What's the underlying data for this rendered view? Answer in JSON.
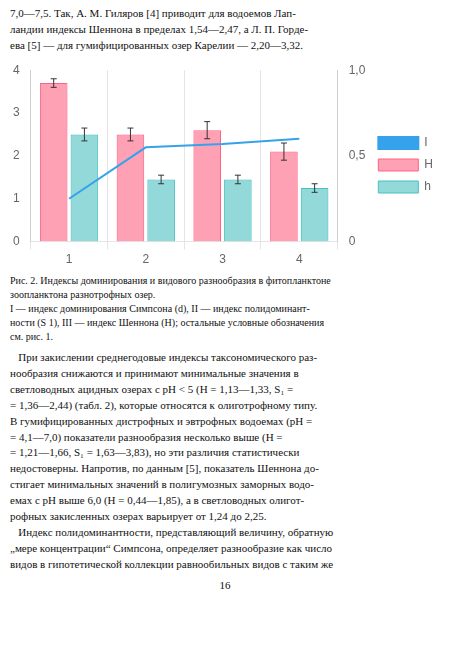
{
  "chart_data": {
    "type": "bar",
    "categories": [
      1,
      2,
      3,
      4
    ],
    "series": [
      {
        "name": "I",
        "type": "line",
        "axis": "y2",
        "marker": "none",
        "values": [
          0.25,
          0.55,
          0.57,
          0.6
        ]
      },
      {
        "name": "H",
        "type": "bar",
        "values": [
          3.7,
          2.5,
          2.6,
          2.1
        ],
        "errors": [
          0.1,
          0.15,
          0.2,
          0.2
        ]
      },
      {
        "name": "h",
        "type": "bar",
        "values": [
          2.5,
          1.45,
          1.45,
          1.25
        ],
        "errors": [
          0.15,
          0.1,
          0.1,
          0.1
        ]
      }
    ],
    "ylim": [
      0,
      4
    ],
    "yticks": [
      0,
      1,
      2,
      3,
      4
    ],
    "y2lim": [
      0,
      1.0
    ],
    "y2ticks": [
      0,
      {
        "value": 0.5,
        "label": "0,5"
      },
      {
        "value": 1.0,
        "label": "1,0"
      }
    ],
    "grid": "x",
    "legend": "right",
    "annotations": [
      "7,0—7,5. Так, А. М. Гиляров [4] приводит для водоемов Лап-\nландии индексы Шеннона в пределах 1,54—2,47, а Л. П. Горде-\nева [5] — для гумифицированных озер Карелии — 2,20—3,32.",
      "Рис. 2. Индексы доминирования и видового разнообразия в фитопланктоне\nзоопланктона разнотрофных озер.\nI — индекс доминирования Симпсона (d), II — индекс полидоминант-\nности (S 1), III — индекс Шеннона (H); остальные условные обозначения\nсм. рис. 1.",
      "   При закислении среднегодовые индексы таксономического раз-\nнообразия снижаются и принимают минимальные значения в\nсветловодных ацидных озерах с pH < 5 (H = 1,13—1,33, S₁ =\n= 1,36—2,44) (табл. 2), которые относятся к олиготрофному типу.\nВ гумифицированных дистрофных и эвтрофных водоемах (pH =\n= 4,1—7,0) показатели разнообразия несколько выше (H =\n= 1,21—1,66, S₁ = 1,63—3,83), но эти различия статистически\nнедостоверны. Напротив, по данным [5], показатель Шеннона до-\nстигает минимальных значений в полигумозных заморных водо-\nемах с pH выше 6,0 (H = 0,44—1,85), а в светловодных олигот-\nрофных закисленных озерах варьирует от 1,24 до 2,25.\n   Индекс полидоминантности, представляющий величину, обратную\n„мере концентрации“ Симпсона, определяет разнообразие как число\nвидов в гипотетической коллекции равнообильных видов с таким же",
      "16"
    ]
  }
}
